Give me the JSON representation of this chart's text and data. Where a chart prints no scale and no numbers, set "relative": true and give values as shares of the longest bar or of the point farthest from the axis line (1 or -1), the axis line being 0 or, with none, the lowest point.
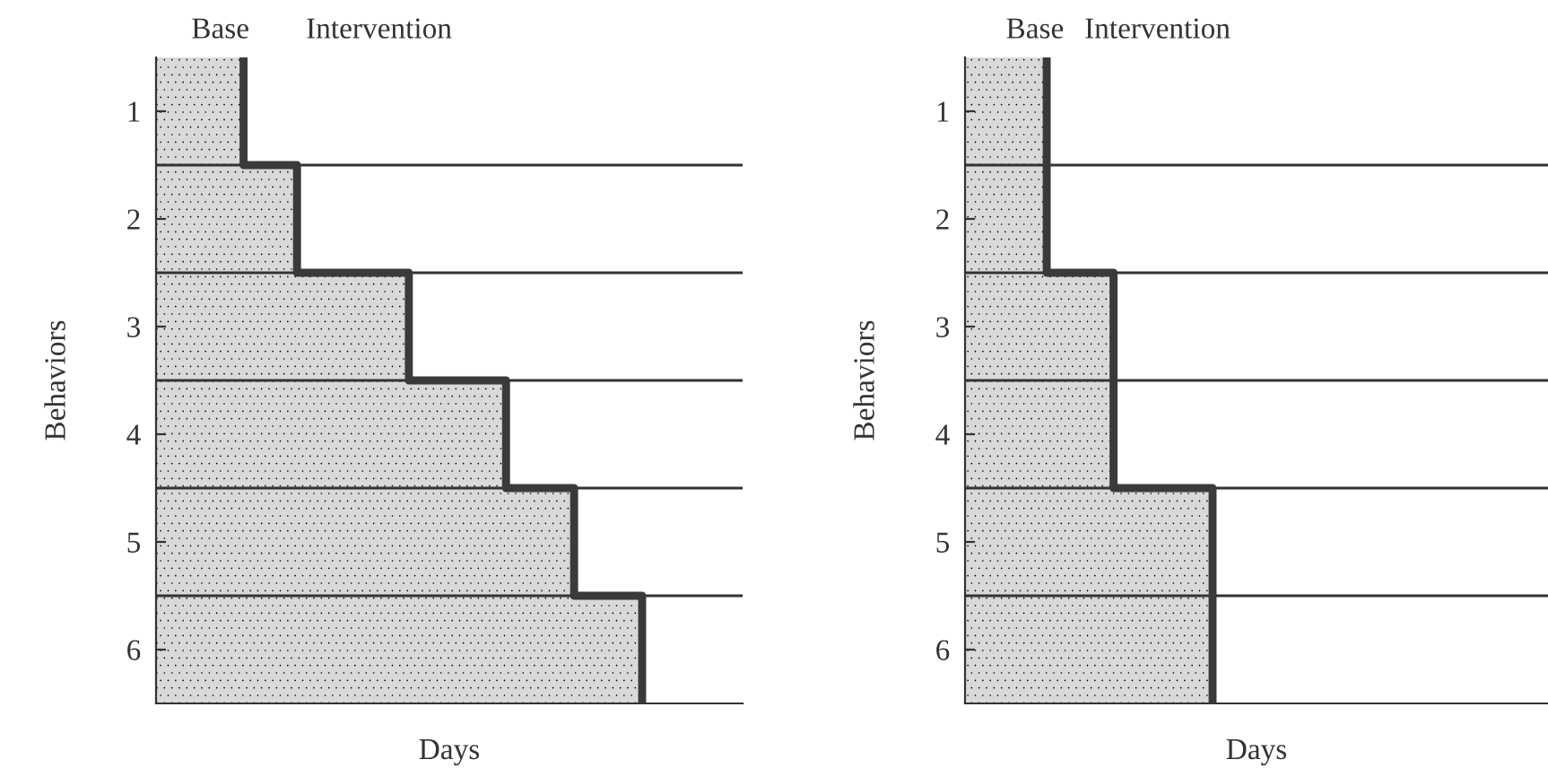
{
  "chart_data": [
    {
      "type": "bar",
      "orientation": "horizontal",
      "relative": true,
      "xlabel": "Days",
      "ylabel": "Behaviors",
      "categories": [
        "1",
        "2",
        "3",
        "4",
        "5",
        "6"
      ],
      "series": [
        {
          "color": "#d9d9d9",
          "values": [
            0.18,
            0.29,
            0.52,
            0.72,
            0.86,
            1.0
          ]
        }
      ],
      "annotations": [
        "Base",
        "Intervention"
      ]
    },
    {
      "type": "bar",
      "orientation": "horizontal",
      "relative": true,
      "xlabel": "Days",
      "ylabel": "Behaviors",
      "categories": [
        "1",
        "2",
        "3",
        "4",
        "5",
        "6"
      ],
      "series": [
        {
          "color": "#d9d9d9",
          "values": [
            0.33,
            0.33,
            0.6,
            0.6,
            1.0,
            1.0
          ]
        }
      ],
      "annotations": [
        "Base",
        "Intervention"
      ]
    }
  ]
}
